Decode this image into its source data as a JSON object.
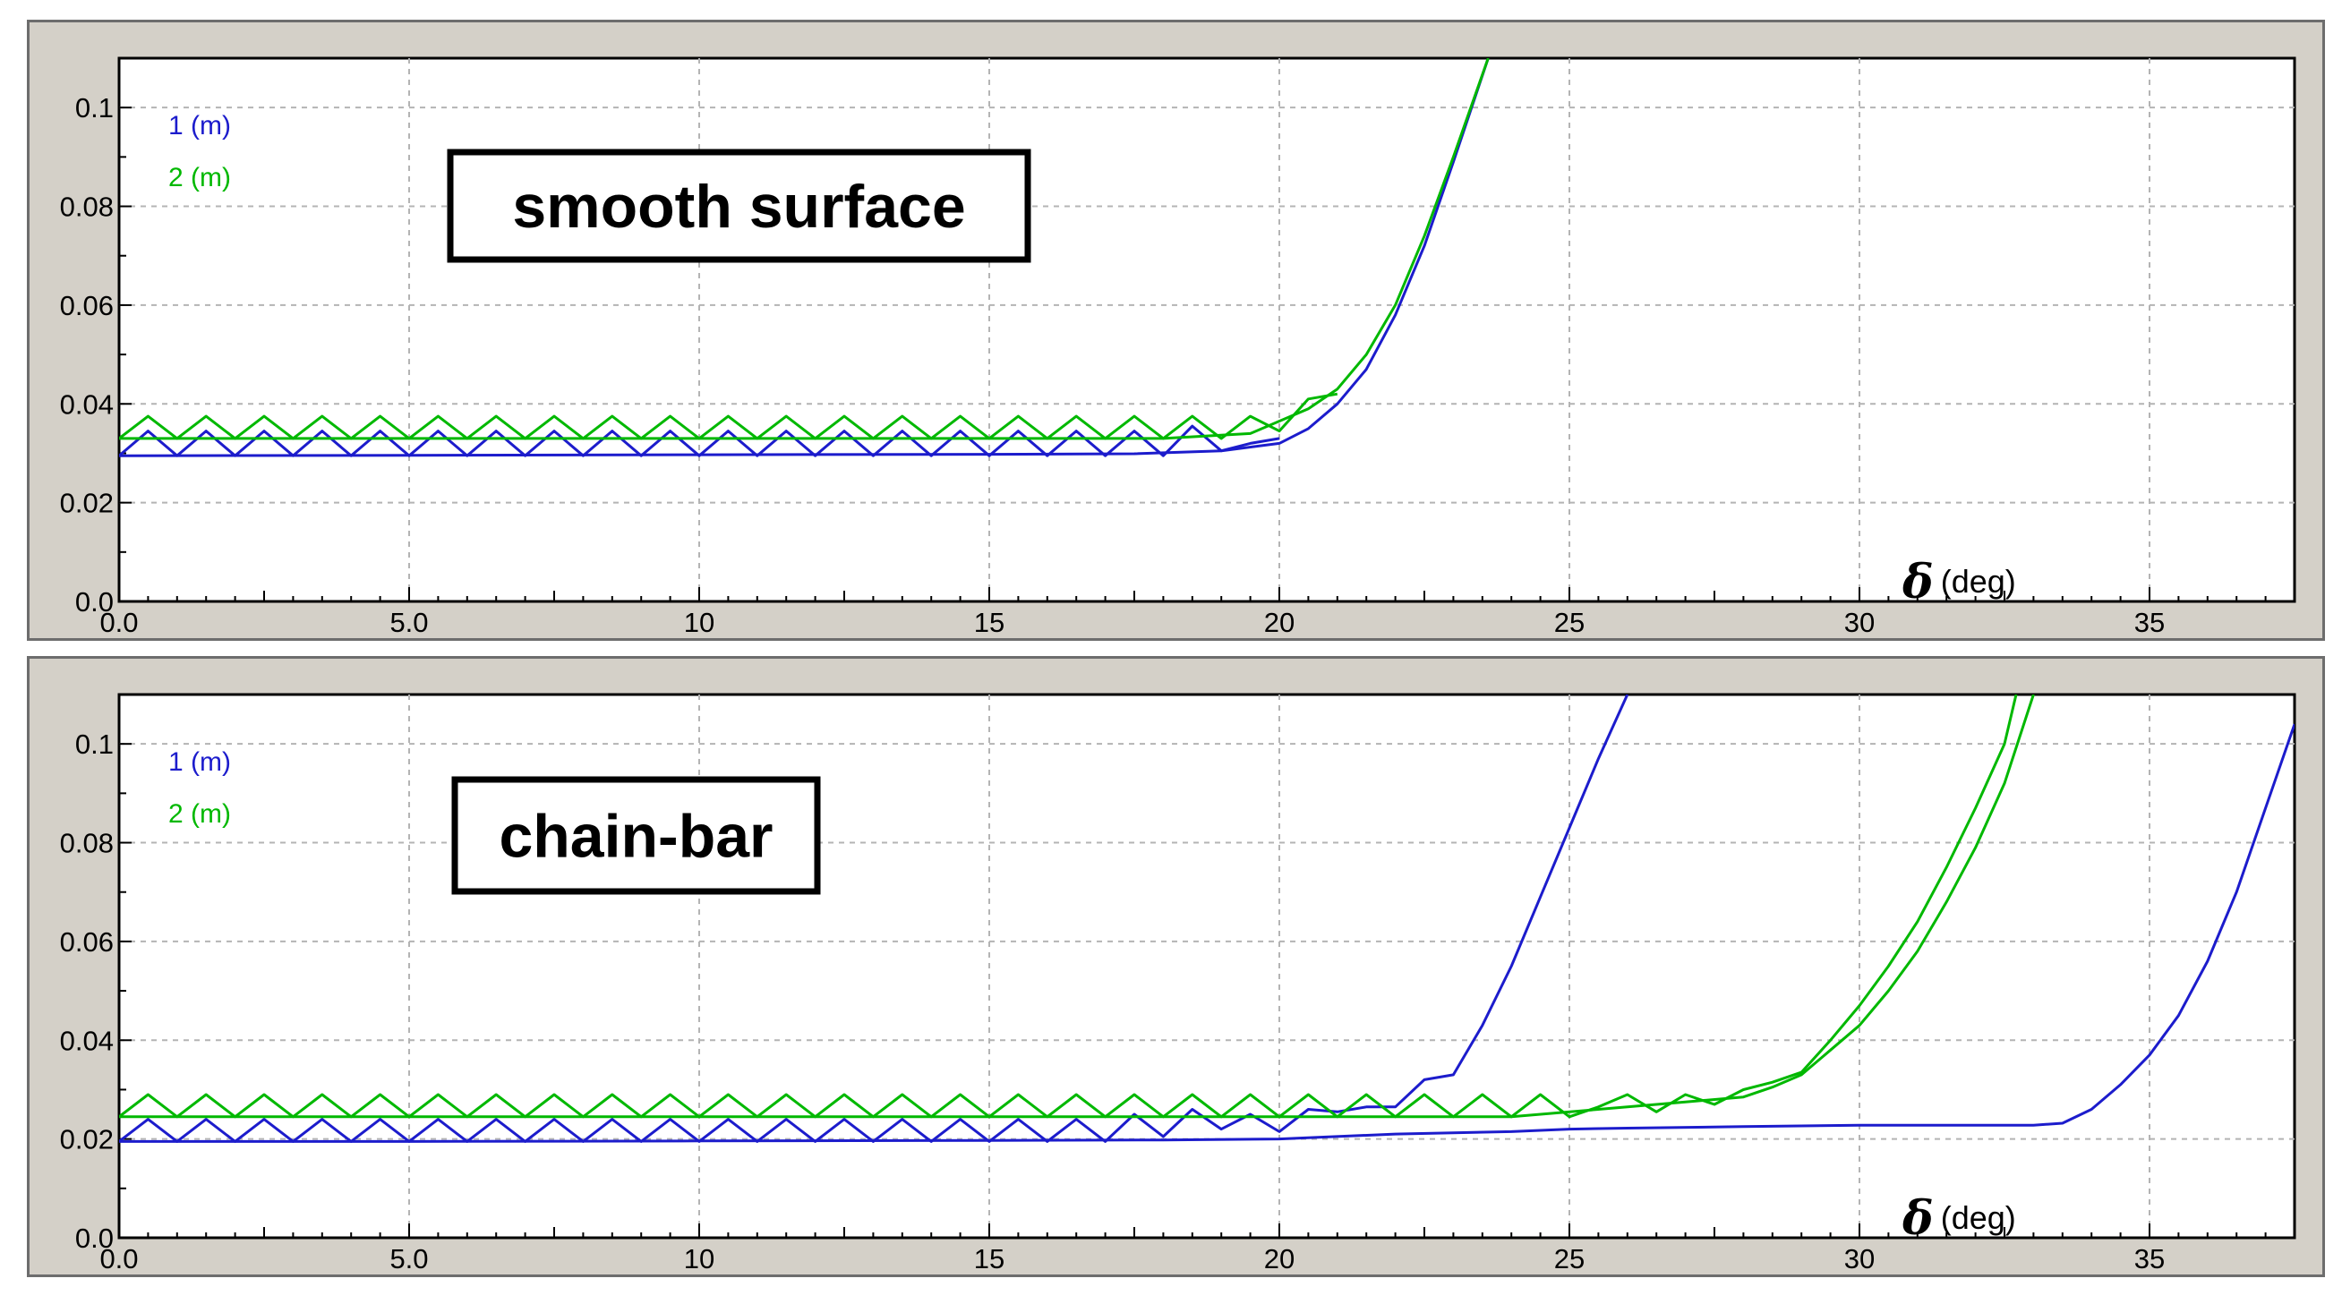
{
  "chart_data": [
    {
      "type": "line",
      "title": "smooth surface",
      "xlabel_symbol": "δ",
      "xlabel_unit": "(deg)",
      "xlim": [
        0,
        37.5
      ],
      "ylim": [
        0,
        0.11
      ],
      "grid": true,
      "legend_position": "top-left",
      "xticks": [
        "0.0",
        "5.0",
        "10",
        "15",
        "20",
        "25",
        "30",
        "35"
      ],
      "xtick_values": [
        0,
        5,
        10,
        15,
        20,
        25,
        30,
        35
      ],
      "yticks": [
        "0.0",
        "0.02",
        "0.04",
        "0.06",
        "0.08",
        "0.1"
      ],
      "ytick_values": [
        0,
        0.02,
        0.04,
        0.06,
        0.08,
        0.1
      ],
      "series": [
        {
          "name": "1 (m)",
          "color": "#1c1ccc",
          "x": [
            0,
            5,
            10,
            15,
            17.5,
            19,
            20,
            20.5,
            21,
            21.5,
            22,
            22.5,
            23,
            23.6
          ],
          "y": [
            0.0295,
            0.0296,
            0.0297,
            0.0298,
            0.0299,
            0.0305,
            0.032,
            0.035,
            0.04,
            0.047,
            0.058,
            0.072,
            0.089,
            0.11
          ]
        },
        {
          "name": "1 (m)",
          "color": "#1c1ccc",
          "x": [
            0,
            0.5,
            1,
            1.5,
            2,
            2.5,
            3,
            3.5,
            4,
            4.5,
            5,
            5.5,
            6,
            6.5,
            7,
            7.5,
            8,
            8.5,
            9,
            9.5,
            10,
            10.5,
            11,
            11.5,
            12,
            12.5,
            13,
            13.5,
            14,
            14.5,
            15,
            15.5,
            16,
            16.5,
            17,
            17.5,
            18,
            18.5,
            19,
            19.5,
            20
          ],
          "y": [
            0.0295,
            0.0345,
            0.0295,
            0.0345,
            0.0295,
            0.0345,
            0.0295,
            0.0345,
            0.0295,
            0.0345,
            0.0295,
            0.0345,
            0.0295,
            0.0345,
            0.0295,
            0.0345,
            0.0295,
            0.0345,
            0.0295,
            0.0345,
            0.0295,
            0.0345,
            0.0295,
            0.0345,
            0.0295,
            0.0345,
            0.0295,
            0.0345,
            0.0295,
            0.0345,
            0.0295,
            0.0345,
            0.0295,
            0.0345,
            0.0295,
            0.0345,
            0.0295,
            0.0355,
            0.0305,
            0.032,
            0.033
          ]
        },
        {
          "name": "2 (m)",
          "color": "#00b800",
          "x": [
            0,
            5,
            10,
            15,
            18,
            19.5,
            20.5,
            21,
            21.5,
            22,
            22.5,
            23,
            23.6
          ],
          "y": [
            0.033,
            0.033,
            0.033,
            0.033,
            0.033,
            0.034,
            0.039,
            0.043,
            0.05,
            0.06,
            0.074,
            0.09,
            0.11
          ]
        },
        {
          "name": "2 (m)",
          "color": "#00b800",
          "x": [
            0,
            0.5,
            1,
            1.5,
            2,
            2.5,
            3,
            3.5,
            4,
            4.5,
            5,
            5.5,
            6,
            6.5,
            7,
            7.5,
            8,
            8.5,
            9,
            9.5,
            10,
            10.5,
            11,
            11.5,
            12,
            12.5,
            13,
            13.5,
            14,
            14.5,
            15,
            15.5,
            16,
            16.5,
            17,
            17.5,
            18,
            18.5,
            19,
            19.5,
            20,
            20.5,
            21
          ],
          "y": [
            0.033,
            0.0375,
            0.033,
            0.0375,
            0.033,
            0.0375,
            0.033,
            0.0375,
            0.033,
            0.0375,
            0.033,
            0.0375,
            0.033,
            0.0375,
            0.033,
            0.0375,
            0.033,
            0.0375,
            0.033,
            0.0375,
            0.033,
            0.0375,
            0.033,
            0.0375,
            0.033,
            0.0375,
            0.033,
            0.0375,
            0.033,
            0.0375,
            0.033,
            0.0375,
            0.033,
            0.0375,
            0.033,
            0.0375,
            0.033,
            0.0375,
            0.033,
            0.0375,
            0.0345,
            0.041,
            0.042
          ]
        }
      ]
    },
    {
      "type": "line",
      "title": "chain-bar",
      "xlabel_symbol": "δ",
      "xlabel_unit": "(deg)",
      "xlim": [
        0,
        37.5
      ],
      "ylim": [
        0,
        0.11
      ],
      "grid": true,
      "legend_position": "top-left",
      "xticks": [
        "0.0",
        "5.0",
        "10",
        "15",
        "20",
        "25",
        "30",
        "35"
      ],
      "xtick_values": [
        0,
        5,
        10,
        15,
        20,
        25,
        30,
        35
      ],
      "yticks": [
        "0.0",
        "0.02",
        "0.04",
        "0.06",
        "0.08",
        "0.1"
      ],
      "ytick_values": [
        0,
        0.02,
        0.04,
        0.06,
        0.08,
        0.1
      ],
      "series": [
        {
          "name": "1 (m)",
          "color": "#1c1ccc",
          "x": [
            0,
            5,
            10,
            15,
            18,
            20,
            22,
            24,
            25,
            26,
            28,
            30,
            32,
            33,
            33.5,
            34,
            34.5,
            35,
            35.5,
            36,
            36.5,
            37,
            37.5
          ],
          "y": [
            0.0195,
            0.0195,
            0.0196,
            0.0197,
            0.0198,
            0.02,
            0.021,
            0.0215,
            0.022,
            0.0222,
            0.0225,
            0.0228,
            0.0228,
            0.0228,
            0.0232,
            0.026,
            0.031,
            0.037,
            0.045,
            0.056,
            0.07,
            0.087,
            0.104
          ]
        },
        {
          "name": "1 (m)",
          "color": "#1c1ccc",
          "x": [
            0,
            0.5,
            1,
            1.5,
            2,
            2.5,
            3,
            3.5,
            4,
            4.5,
            5,
            5.5,
            6,
            6.5,
            7,
            7.5,
            8,
            8.5,
            9,
            9.5,
            10,
            10.5,
            11,
            11.5,
            12,
            12.5,
            13,
            13.5,
            14,
            14.5,
            15,
            15.5,
            16,
            16.5,
            17,
            17.5,
            18,
            18.5,
            19,
            19.5,
            20,
            20.5,
            21,
            21.5,
            22,
            22.5,
            23,
            23.5,
            24,
            24.5,
            25,
            25.5,
            26
          ],
          "y": [
            0.0195,
            0.024,
            0.0195,
            0.024,
            0.0195,
            0.024,
            0.0195,
            0.024,
            0.0195,
            0.024,
            0.0195,
            0.024,
            0.0195,
            0.024,
            0.0195,
            0.024,
            0.0195,
            0.024,
            0.0195,
            0.024,
            0.0195,
            0.024,
            0.0195,
            0.024,
            0.0195,
            0.024,
            0.0195,
            0.024,
            0.0195,
            0.024,
            0.0195,
            0.024,
            0.0195,
            0.024,
            0.0195,
            0.025,
            0.0205,
            0.026,
            0.022,
            0.025,
            0.0215,
            0.026,
            0.0255,
            0.0265,
            0.0265,
            0.032,
            0.033,
            0.043,
            0.055,
            0.069,
            0.083,
            0.097,
            0.11
          ]
        },
        {
          "name": "2 (m)",
          "color": "#00b800",
          "x": [
            0,
            5,
            10,
            15,
            20,
            24,
            26,
            27,
            28,
            28.5,
            29,
            29.5,
            30,
            30.5,
            31,
            31.5,
            32,
            32.5,
            33
          ],
          "y": [
            0.0245,
            0.0245,
            0.0245,
            0.0245,
            0.0245,
            0.0245,
            0.0265,
            0.0275,
            0.0285,
            0.0305,
            0.033,
            0.038,
            0.043,
            0.05,
            0.058,
            0.068,
            0.079,
            0.092,
            0.11
          ]
        },
        {
          "name": "2 (m)",
          "color": "#00b800",
          "x": [
            0,
            0.5,
            1,
            1.5,
            2,
            2.5,
            3,
            3.5,
            4,
            4.5,
            5,
            5.5,
            6,
            6.5,
            7,
            7.5,
            8,
            8.5,
            9,
            9.5,
            10,
            10.5,
            11,
            11.5,
            12,
            12.5,
            13,
            13.5,
            14,
            14.5,
            15,
            15.5,
            16,
            16.5,
            17,
            17.5,
            18,
            18.5,
            19,
            19.5,
            20,
            20.5,
            21,
            21.5,
            22,
            22.5,
            23,
            23.5,
            24,
            24.5,
            25,
            25.5,
            26,
            26.5,
            27,
            27.5,
            28,
            28.5,
            29,
            29.5,
            30,
            30.5,
            31,
            31.5,
            32,
            32.5,
            32.7
          ],
          "y": [
            0.0245,
            0.029,
            0.0245,
            0.029,
            0.0245,
            0.029,
            0.0245,
            0.029,
            0.0245,
            0.029,
            0.0245,
            0.029,
            0.0245,
            0.029,
            0.0245,
            0.029,
            0.0245,
            0.029,
            0.0245,
            0.029,
            0.0245,
            0.029,
            0.0245,
            0.029,
            0.0245,
            0.029,
            0.0245,
            0.029,
            0.0245,
            0.029,
            0.0245,
            0.029,
            0.0245,
            0.029,
            0.0245,
            0.029,
            0.0245,
            0.029,
            0.0245,
            0.029,
            0.0245,
            0.029,
            0.0245,
            0.029,
            0.0245,
            0.029,
            0.0245,
            0.029,
            0.0245,
            0.029,
            0.0245,
            0.0265,
            0.029,
            0.0255,
            0.029,
            0.027,
            0.03,
            0.0315,
            0.0335,
            0.04,
            0.047,
            0.055,
            0.064,
            0.075,
            0.087,
            0.1,
            0.11
          ]
        }
      ]
    }
  ]
}
